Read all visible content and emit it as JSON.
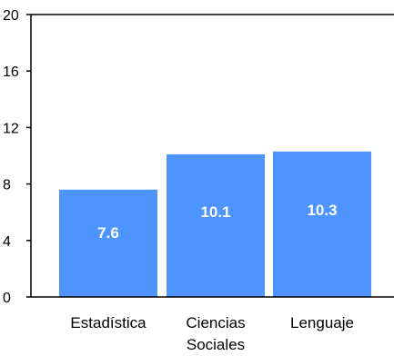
{
  "chart_data": {
    "type": "bar",
    "categories": [
      [
        "Estadística"
      ],
      [
        "Ciencias",
        "Sociales"
      ],
      [
        "Lenguaje"
      ]
    ],
    "values": [
      7.6,
      10.1,
      10.3
    ],
    "data_labels": [
      "7.6",
      "10.1",
      "10.3"
    ],
    "y_ticks": [
      "0",
      "4",
      "8",
      "12",
      "16",
      "20"
    ],
    "ylim": [
      0,
      20
    ],
    "title": "",
    "xlabel": "",
    "ylabel": "",
    "grid": false,
    "legend": "none",
    "bar_color": "#4d94ff",
    "axis_color": "#000000"
  }
}
